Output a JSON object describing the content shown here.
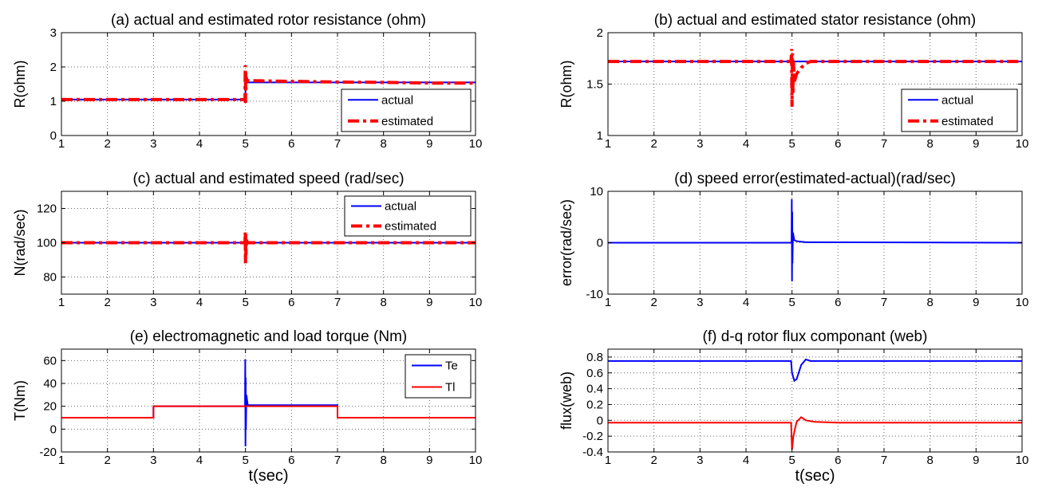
{
  "chart_data": [
    {
      "id": "a",
      "type": "line",
      "title": "(a) actual and estimated rotor resistance (ohm)",
      "ylabel": "R(ohm)",
      "xlabel": "",
      "xlim": [
        1,
        10
      ],
      "ylim": [
        0,
        3
      ],
      "xticks": [
        1,
        2,
        3,
        4,
        5,
        6,
        7,
        8,
        9,
        10
      ],
      "yticks": [
        0,
        1,
        2,
        3
      ],
      "grid": true,
      "legend": {
        "position": "bottom-right",
        "entries": [
          "actual",
          "estimated"
        ]
      },
      "series": [
        {
          "name": "actual",
          "color": "#0000ff",
          "style": "solid",
          "x": [
            1,
            5,
            5,
            10
          ],
          "y": [
            1.05,
            1.05,
            1.55,
            1.55
          ]
        },
        {
          "name": "estimated",
          "color": "#ff0000",
          "style": "dashdot",
          "x": [
            1,
            4.99,
            4.995,
            5.0,
            5.005,
            5.01,
            5.02,
            5.03,
            5.05,
            6,
            7,
            8,
            9,
            10
          ],
          "y": [
            1.05,
            1.05,
            2.05,
            0.95,
            1.9,
            1.35,
            1.7,
            1.5,
            1.6,
            1.58,
            1.56,
            1.55,
            1.53,
            1.53
          ]
        }
      ]
    },
    {
      "id": "b",
      "type": "line",
      "title": "(b) actual and estimated stator resistance (ohm)",
      "ylabel": "R(ohm)",
      "xlabel": "",
      "xlim": [
        1,
        10
      ],
      "ylim": [
        1,
        2
      ],
      "xticks": [
        1,
        2,
        3,
        4,
        5,
        6,
        7,
        8,
        9,
        10
      ],
      "yticks": [
        1,
        1.5,
        2
      ],
      "grid": true,
      "legend": {
        "position": "bottom-right",
        "entries": [
          "actual",
          "estimated"
        ]
      },
      "series": [
        {
          "name": "actual",
          "color": "#0000ff",
          "style": "solid",
          "x": [
            1,
            10
          ],
          "y": [
            1.72,
            1.72
          ]
        },
        {
          "name": "estimated",
          "color": "#ff0000",
          "style": "dashdot",
          "x": [
            1,
            4.98,
            4.99,
            5.0,
            5.01,
            5.02,
            5.03,
            5.05,
            5.1,
            5.2,
            5.3,
            5.4,
            6,
            10
          ],
          "y": [
            1.72,
            1.72,
            1.84,
            1.28,
            1.8,
            1.4,
            1.72,
            1.52,
            1.6,
            1.66,
            1.7,
            1.72,
            1.72,
            1.72
          ]
        }
      ]
    },
    {
      "id": "c",
      "type": "line",
      "title": "(c) actual and estimated speed (rad/sec)",
      "ylabel": "N(rad/sec)",
      "xlabel": "",
      "xlim": [
        1,
        10
      ],
      "ylim": [
        70,
        130
      ],
      "xticks": [
        1,
        2,
        3,
        4,
        5,
        6,
        7,
        8,
        9,
        10
      ],
      "yticks": [
        80,
        100,
        120
      ],
      "grid": true,
      "legend": {
        "position": "top-right",
        "entries": [
          "actual",
          "estimated"
        ]
      },
      "series": [
        {
          "name": "actual",
          "color": "#0000ff",
          "style": "solid",
          "x": [
            1,
            10
          ],
          "y": [
            100,
            100
          ]
        },
        {
          "name": "estimated",
          "color": "#ff0000",
          "style": "dashdot",
          "x": [
            1,
            4.99,
            4.995,
            5.0,
            5.005,
            5.01,
            5.02,
            5.04,
            10
          ],
          "y": [
            100,
            100,
            106,
            88,
            105,
            93,
            102,
            100,
            100
          ]
        }
      ]
    },
    {
      "id": "d",
      "type": "line",
      "title": "(d) speed error(estimated-actual)(rad/sec)",
      "ylabel": "error(rad/sec)",
      "xlabel": "",
      "xlim": [
        1,
        10
      ],
      "ylim": [
        -10,
        10
      ],
      "xticks": [
        1,
        2,
        3,
        4,
        5,
        6,
        7,
        8,
        9,
        10
      ],
      "yticks": [
        -10,
        0,
        10
      ],
      "grid": true,
      "legend": null,
      "series": [
        {
          "name": "",
          "color": "#0000ff",
          "style": "solid",
          "x": [
            1,
            4.99,
            4.995,
            5.0,
            5.005,
            5.01,
            5.02,
            5.05,
            5.1,
            5.3,
            10
          ],
          "y": [
            0,
            0,
            8.5,
            -7.5,
            6,
            -4,
            2,
            0.5,
            0.3,
            0.1,
            0
          ]
        }
      ]
    },
    {
      "id": "e",
      "type": "line",
      "title": "(e) electromagnetic and load torque (Nm)",
      "ylabel": "T(Nm)",
      "xlabel": "t(sec)",
      "xlim": [
        1,
        10
      ],
      "ylim": [
        -20,
        70
      ],
      "xticks": [
        1,
        2,
        3,
        4,
        5,
        6,
        7,
        8,
        9,
        10
      ],
      "yticks": [
        -20,
        0,
        20,
        40,
        60
      ],
      "grid": true,
      "legend": {
        "position": "top-right",
        "entries": [
          "Te",
          "Tl"
        ]
      },
      "series": [
        {
          "name": "Te",
          "color": "#0000ff",
          "style": "solid",
          "x": [
            1,
            3,
            3,
            4.99,
            4.995,
            5.0,
            5.005,
            5.01,
            5.02,
            5.05,
            7,
            7,
            10
          ],
          "y": [
            10,
            10,
            20,
            20,
            61,
            -15,
            45,
            0,
            30,
            21,
            21,
            10,
            10
          ]
        },
        {
          "name": "Tl",
          "color": "#ff0000",
          "style": "solid",
          "x": [
            1,
            3,
            3,
            7,
            7,
            10
          ],
          "y": [
            10,
            10,
            20,
            20,
            10,
            10
          ]
        }
      ]
    },
    {
      "id": "f",
      "type": "line",
      "title": "(f) d-q rotor flux componant (web)",
      "ylabel": "flux(web)",
      "xlabel": "t(sec)",
      "xlim": [
        1,
        10
      ],
      "ylim": [
        -0.4,
        0.9
      ],
      "xticks": [
        1,
        2,
        3,
        4,
        5,
        6,
        7,
        8,
        9,
        10
      ],
      "yticks": [
        -0.4,
        -0.2,
        0,
        0.2,
        0.4,
        0.6,
        0.8
      ],
      "grid": true,
      "legend": null,
      "series": [
        {
          "name": "",
          "color": "#0000ff",
          "style": "solid",
          "x": [
            1,
            4.98,
            5.0,
            5.05,
            5.1,
            5.2,
            5.3,
            5.4,
            10
          ],
          "y": [
            0.75,
            0.75,
            0.6,
            0.5,
            0.52,
            0.7,
            0.77,
            0.75,
            0.75
          ]
        },
        {
          "name": "",
          "color": "#ff0000",
          "style": "solid",
          "x": [
            1,
            4.98,
            5.0,
            5.03,
            5.06,
            5.1,
            5.2,
            5.3,
            5.5,
            6,
            10
          ],
          "y": [
            -0.03,
            -0.03,
            -0.37,
            -0.2,
            -0.12,
            -0.02,
            0.04,
            0.0,
            -0.02,
            -0.03,
            -0.03
          ]
        }
      ]
    }
  ]
}
